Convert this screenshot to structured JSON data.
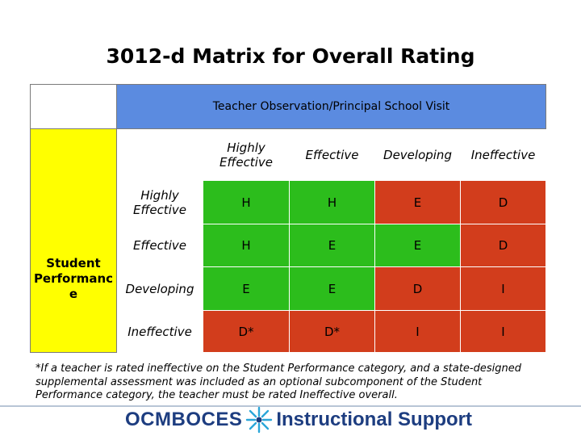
{
  "title": "3012-d Matrix for Overall Rating",
  "matrix": {
    "top_header": "Teacher Observation/Principal School Visit",
    "side_header": "Student\nPerformanc\ne",
    "columns": [
      "Highly Effective",
      "Effective",
      "Developing",
      "Ineffective"
    ],
    "rows": [
      {
        "label": "Highly Effective",
        "cells": [
          "H",
          "H",
          "E",
          "D"
        ]
      },
      {
        "label": "Effective",
        "cells": [
          "H",
          "E",
          "E",
          "D"
        ]
      },
      {
        "label": "Developing",
        "cells": [
          "E",
          "E",
          "D",
          "I"
        ]
      },
      {
        "label": "Ineffective",
        "cells": [
          "D*",
          "D*",
          "I",
          "I"
        ]
      }
    ],
    "colors": {
      "green": "#2cbd1c",
      "red": "#d23d1c",
      "blue_band": "#5b8be0",
      "yellow_band": "#ffff00"
    }
  },
  "footnote": "*If a teacher is rated ineffective on the Student Performance category, and a state-designed supplemental assessment was included as an optional subcomponent of the Student Performance category, the teacher must be rated Ineffective overall.",
  "footer": {
    "brand": "OCMBOCES",
    "tagline": "Instructional Support",
    "logo_icon": "starburst-icon"
  }
}
